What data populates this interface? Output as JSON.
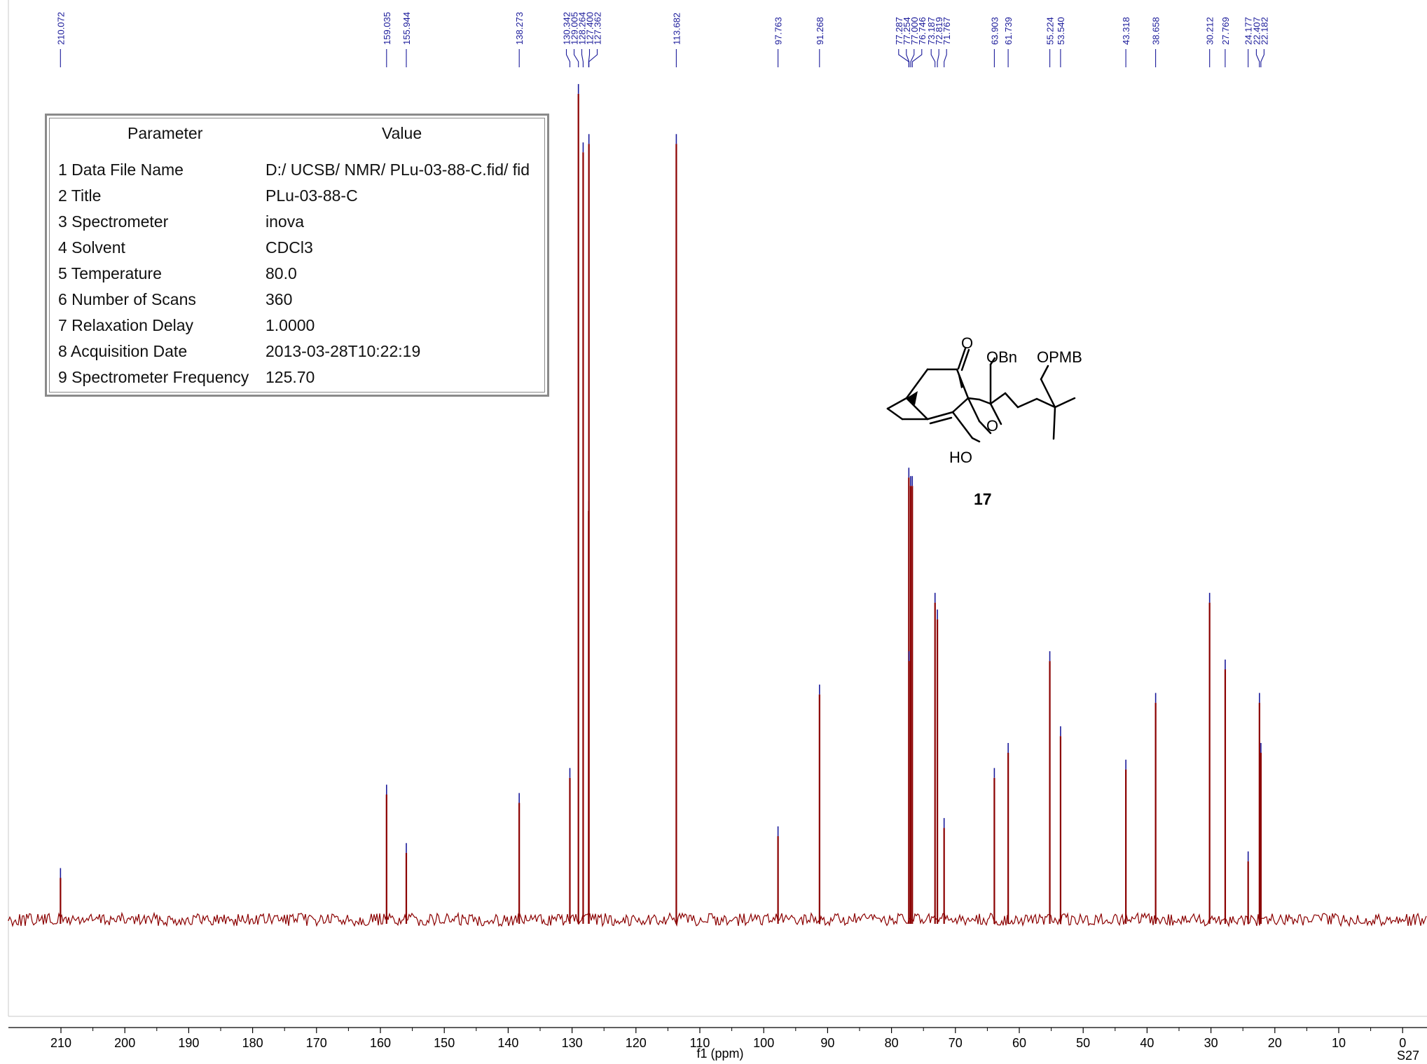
{
  "chart_data": {
    "type": "line",
    "xlabel": "f1 (ppm)",
    "xlim": [
      213.5,
      -3.5
    ],
    "xreverse": true,
    "ticks": [
      210,
      200,
      190,
      180,
      170,
      160,
      150,
      140,
      130,
      120,
      110,
      100,
      90,
      80,
      70,
      60,
      50,
      40,
      30,
      20,
      10,
      0
    ],
    "y_relative_max": 1.0,
    "peaks": [
      {
        "ppm": 210.072,
        "label": "210.072",
        "height": 0.05
      },
      {
        "ppm": 159.035,
        "label": "159.035",
        "height": 0.15
      },
      {
        "ppm": 155.944,
        "label": "155.944",
        "height": 0.08
      },
      {
        "ppm": 138.273,
        "label": "138.273",
        "height": 0.14
      },
      {
        "ppm": 130.342,
        "label": "130.342",
        "height": 0.17
      },
      {
        "ppm": 129.005,
        "label": "129.005",
        "height": 0.99
      },
      {
        "ppm": 128.264,
        "label": "128.264",
        "height": 0.92
      },
      {
        "ppm": 127.4,
        "label": "127.400",
        "height": 0.49
      },
      {
        "ppm": 127.362,
        "label": "127.362",
        "height": 0.93
      },
      {
        "ppm": 113.682,
        "label": "113.682",
        "height": 0.93
      },
      {
        "ppm": 97.763,
        "label": "97.763",
        "height": 0.1
      },
      {
        "ppm": 91.268,
        "label": "91.268",
        "height": 0.27
      },
      {
        "ppm": 77.287,
        "label": "77.287",
        "height": 0.53
      },
      {
        "ppm": 77.254,
        "label": "77.254",
        "height": 0.31
      },
      {
        "ppm": 77.0,
        "label": "77.000",
        "height": 0.52
      },
      {
        "ppm": 76.746,
        "label": "76.746",
        "height": 0.52
      },
      {
        "ppm": 73.187,
        "label": "73.187",
        "height": 0.38
      },
      {
        "ppm": 72.819,
        "label": "72.819",
        "height": 0.36
      },
      {
        "ppm": 71.767,
        "label": "71.767",
        "height": 0.11
      },
      {
        "ppm": 63.903,
        "label": "63.903",
        "height": 0.17
      },
      {
        "ppm": 61.739,
        "label": "61.739",
        "height": 0.2
      },
      {
        "ppm": 55.224,
        "label": "55.224",
        "height": 0.31
      },
      {
        "ppm": 53.54,
        "label": "53.540",
        "height": 0.22
      },
      {
        "ppm": 43.318,
        "label": "43.318",
        "height": 0.18
      },
      {
        "ppm": 38.658,
        "label": "38.658",
        "height": 0.26
      },
      {
        "ppm": 30.212,
        "label": "30.212",
        "height": 0.38
      },
      {
        "ppm": 27.769,
        "label": "27.769",
        "height": 0.3
      },
      {
        "ppm": 24.177,
        "label": "24.177",
        "height": 0.07
      },
      {
        "ppm": 22.407,
        "label": "22.407",
        "height": 0.26
      },
      {
        "ppm": 22.182,
        "label": "22.182",
        "height": 0.2
      }
    ],
    "colors": {
      "spectrum": "#8b0000",
      "peak_label": "#1a1a9a",
      "axis": "#000000"
    }
  },
  "parameter_table": {
    "header_param": "Parameter",
    "header_value": "Value",
    "rows": [
      {
        "label": "1 Data File Name",
        "value": "D:/ UCSB/ NMR/ PLu-03-88-C.fid/ fid"
      },
      {
        "label": "2 Title",
        "value": "PLu-03-88-C"
      },
      {
        "label": "3 Spectrometer",
        "value": "inova"
      },
      {
        "label": "4 Solvent",
        "value": "CDCl3"
      },
      {
        "label": "5 Temperature",
        "value": "80.0"
      },
      {
        "label": "6 Number of Scans",
        "value": "360"
      },
      {
        "label": "7 Relaxation Delay",
        "value": "1.0000"
      },
      {
        "label": "8 Acquisition Date",
        "value": "2013-03-28T10:22:19"
      },
      {
        "label": "9 Spectrometer Frequency",
        "value": "125.70"
      }
    ]
  },
  "structure": {
    "o_label": "O",
    "obn_label": "OBn",
    "opmb_label": "OPMB",
    "ring_o_label": "O",
    "ho_label": "HO",
    "compound_number": "17"
  },
  "page_id": "S27"
}
